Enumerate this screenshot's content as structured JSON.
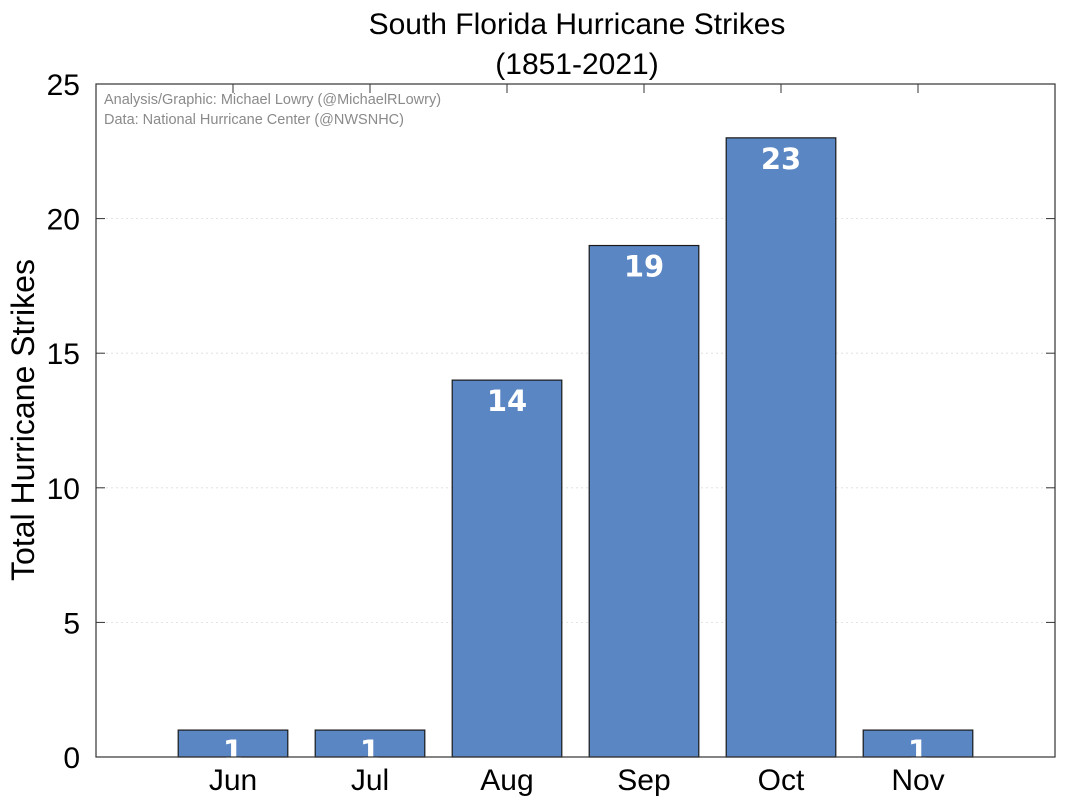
{
  "chart_data": {
    "type": "bar",
    "title": "South Florida Hurricane Strikes",
    "subtitle": "(1851-2021)",
    "xlabel": "",
    "ylabel": "Total Hurricane Strikes",
    "categories": [
      "Jun",
      "Jul",
      "Aug",
      "Sep",
      "Oct",
      "Nov"
    ],
    "values": [
      1,
      1,
      14,
      19,
      23,
      1
    ],
    "data_labels": [
      "1",
      "1",
      "14",
      "19",
      "23",
      "1"
    ],
    "ylim": [
      0,
      25
    ],
    "yticks": [
      0,
      5,
      10,
      15,
      20,
      25
    ],
    "ytick_labels": [
      "0",
      "5",
      "10",
      "15",
      "20",
      "25"
    ],
    "xlim": [
      0,
      7
    ],
    "grid": true,
    "bar_color": "#5b86c4",
    "bar_edge_color": "#1a1a1a",
    "annotations": [
      "Analysis/Graphic: Michael Lowry (@MichaelRLowry)",
      "Data: National Hurricane Center (@NWSNHC)"
    ]
  }
}
